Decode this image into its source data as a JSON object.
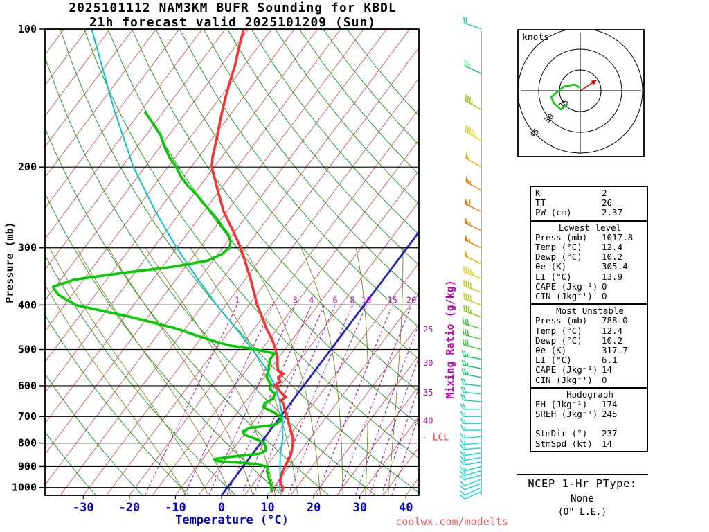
{
  "header": {
    "title_line1": "2025101112 NAM3KM BUFR Sounding for KBDL",
    "title_line2": "21h forecast valid 2025101209 (Sun)"
  },
  "watermark": "coolwx.com/modelts",
  "axes": {
    "pressure_label": "Pressure (mb)",
    "temperature_label": "Temperature (°C)",
    "mixing_ratio_label": "Mixing Ratio (g/kg)",
    "pressure_ticks": [
      100,
      200,
      300,
      400,
      500,
      600,
      700,
      800,
      900,
      1000
    ],
    "temperature_ticks": [
      -30,
      -20,
      -10,
      0,
      10,
      20,
      30,
      40
    ]
  },
  "chart_data": {
    "type": "skewt-sounding",
    "station": "KBDL",
    "model": "NAM3KM BUFR",
    "run": "2025101112",
    "forecast_hour": "21h",
    "valid": "2025101209 (Sun)",
    "pressure_range_mb": [
      100,
      1040
    ],
    "isotherm_step_c": 5,
    "highlighted_isotherm_c": 0,
    "dry_adiabats_theta_c": [
      -30,
      -20,
      -10,
      0,
      10,
      20,
      30,
      40,
      50,
      60,
      70,
      80,
      90,
      100,
      110,
      120,
      130,
      140,
      150,
      160
    ],
    "moist_adiabats_c": [
      -10,
      -5,
      0,
      5,
      10,
      15,
      20,
      25,
      30,
      35
    ],
    "mixing_ratio_gkg": [
      1,
      2,
      3,
      4,
      5,
      6,
      8,
      10,
      15,
      20,
      25,
      30,
      35,
      40
    ],
    "mixing_ratio_labels_inplot": [
      1,
      3,
      4,
      6,
      8,
      10,
      15,
      20
    ],
    "mixing_ratio_labels_right": [
      25,
      30,
      35,
      40
    ],
    "lcl_label": "- LCL",
    "lcl_pressure_mb": 778,
    "temperature_profile": [
      [
        1018,
        12.4
      ],
      [
        1000,
        12.1
      ],
      [
        985,
        11.2
      ],
      [
        965,
        10.3
      ],
      [
        950,
        10.0
      ],
      [
        925,
        9.4
      ],
      [
        900,
        9.1
      ],
      [
        875,
        8.8
      ],
      [
        850,
        8.5
      ],
      [
        825,
        7.8
      ],
      [
        800,
        7.0
      ],
      [
        788,
        6.5
      ],
      [
        775,
        5.9
      ],
      [
        750,
        4.4
      ],
      [
        725,
        2.9
      ],
      [
        700,
        1.4
      ],
      [
        680,
        0.0
      ],
      [
        660,
        -1.2
      ],
      [
        645,
        -2.6
      ],
      [
        635,
        -2.0
      ],
      [
        620,
        -3.9
      ],
      [
        608,
        -5.2
      ],
      [
        598,
        -6.3
      ],
      [
        588,
        -5.7
      ],
      [
        575,
        -6.9
      ],
      [
        565,
        -6.3
      ],
      [
        555,
        -8.1
      ],
      [
        540,
        -9.1
      ],
      [
        525,
        -10.0
      ],
      [
        500,
        -12.0
      ],
      [
        475,
        -14.4
      ],
      [
        450,
        -17.4
      ],
      [
        425,
        -20.2
      ],
      [
        400,
        -23.2
      ],
      [
        375,
        -26.0
      ],
      [
        350,
        -29.0
      ],
      [
        325,
        -32.4
      ],
      [
        300,
        -36.1
      ],
      [
        275,
        -40.6
      ],
      [
        250,
        -45.7
      ],
      [
        225,
        -50.4
      ],
      [
        200,
        -55.5
      ],
      [
        190,
        -57.0
      ],
      [
        180,
        -58.2
      ],
      [
        170,
        -59.5
      ],
      [
        160,
        -61.0
      ],
      [
        150,
        -62.5
      ],
      [
        140,
        -64.0
      ],
      [
        130,
        -65.5
      ],
      [
        120,
        -67.0
      ],
      [
        110,
        -69.0
      ],
      [
        100,
        -71.0
      ]
    ],
    "dewpoint_profile": [
      [
        1018,
        10.2
      ],
      [
        1000,
        9.5
      ],
      [
        985,
        9.0
      ],
      [
        965,
        8.0
      ],
      [
        950,
        7.3
      ],
      [
        925,
        6.1
      ],
      [
        900,
        5.3
      ],
      [
        888,
        2.0
      ],
      [
        876,
        -6.5
      ],
      [
        868,
        -7.5
      ],
      [
        858,
        -4.5
      ],
      [
        845,
        1.4
      ],
      [
        830,
        2.3
      ],
      [
        815,
        1.6
      ],
      [
        800,
        0.8
      ],
      [
        785,
        -1.5
      ],
      [
        768,
        -4.8
      ],
      [
        755,
        -5.8
      ],
      [
        742,
        -4.9
      ],
      [
        730,
        0.1
      ],
      [
        715,
        0.8
      ],
      [
        700,
        -0.1
      ],
      [
        685,
        -2.3
      ],
      [
        668,
        -5.3
      ],
      [
        655,
        -5.6
      ],
      [
        640,
        -4.5
      ],
      [
        625,
        -4.9
      ],
      [
        610,
        -6.8
      ],
      [
        598,
        -7.1
      ],
      [
        575,
        -9.4
      ],
      [
        550,
        -10.4
      ],
      [
        525,
        -11.6
      ],
      [
        510,
        -11.6
      ],
      [
        500,
        -16.2
      ],
      [
        490,
        -22.7
      ],
      [
        475,
        -28.4
      ],
      [
        450,
        -37.0
      ],
      [
        425,
        -48.6
      ],
      [
        400,
        -62.6
      ],
      [
        380,
        -68.0
      ],
      [
        365,
        -70.5
      ],
      [
        352,
        -67.0
      ],
      [
        340,
        -57.3
      ],
      [
        330,
        -47.7
      ],
      [
        320,
        -41.2
      ],
      [
        310,
        -39.2
      ],
      [
        300,
        -38.5
      ],
      [
        290,
        -39.4
      ],
      [
        280,
        -41.1
      ],
      [
        270,
        -43.5
      ],
      [
        260,
        -45.8
      ],
      [
        250,
        -48.5
      ],
      [
        240,
        -51.4
      ],
      [
        230,
        -54.2
      ],
      [
        220,
        -57.6
      ],
      [
        210,
        -60.6
      ],
      [
        200,
        -63.2
      ],
      [
        190,
        -66.4
      ],
      [
        180,
        -69.2
      ],
      [
        170,
        -71.9
      ],
      [
        160,
        -75.6
      ],
      [
        152,
        -78.8
      ]
    ],
    "parcel_profile": [
      [
        1018,
        12.0
      ],
      [
        975,
        10.5
      ],
      [
        950,
        9.8
      ],
      [
        900,
        8.0
      ],
      [
        850,
        6.2
      ],
      [
        800,
        4.6
      ],
      [
        778,
        3.9
      ],
      [
        750,
        2.6
      ],
      [
        700,
        0.4
      ],
      [
        650,
        -2.6
      ],
      [
        600,
        -6.2
      ],
      [
        550,
        -11.0
      ],
      [
        500,
        -17.0
      ],
      [
        450,
        -24.0
      ],
      [
        400,
        -32.0
      ],
      [
        350,
        -40.5
      ],
      [
        300,
        -50.0
      ],
      [
        250,
        -60.5
      ],
      [
        200,
        -72.5
      ],
      [
        150,
        -86.0
      ],
      [
        100,
        -104.0
      ]
    ],
    "winds": [
      [
        1020,
        245,
        10
      ],
      [
        1000,
        245,
        10
      ],
      [
        980,
        250,
        12
      ],
      [
        960,
        250,
        12
      ],
      [
        940,
        255,
        15
      ],
      [
        920,
        255,
        15
      ],
      [
        900,
        255,
        15
      ],
      [
        880,
        260,
        15
      ],
      [
        860,
        260,
        15
      ],
      [
        840,
        260,
        15
      ],
      [
        820,
        265,
        15
      ],
      [
        800,
        265,
        15
      ],
      [
        775,
        265,
        15
      ],
      [
        750,
        270,
        15
      ],
      [
        725,
        270,
        15
      ],
      [
        700,
        270,
        15
      ],
      [
        675,
        270,
        20
      ],
      [
        650,
        275,
        20
      ],
      [
        625,
        275,
        20
      ],
      [
        600,
        275,
        20
      ],
      [
        575,
        280,
        25
      ],
      [
        550,
        280,
        25
      ],
      [
        525,
        280,
        25
      ],
      [
        500,
        285,
        30
      ],
      [
        475,
        285,
        30
      ],
      [
        450,
        285,
        30
      ],
      [
        425,
        290,
        35
      ],
      [
        400,
        290,
        40
      ],
      [
        375,
        290,
        40
      ],
      [
        350,
        290,
        45
      ],
      [
        325,
        295,
        50
      ],
      [
        300,
        295,
        55
      ],
      [
        275,
        295,
        55
      ],
      [
        250,
        295,
        60
      ],
      [
        225,
        300,
        55
      ],
      [
        200,
        300,
        50
      ],
      [
        175,
        300,
        45
      ],
      [
        150,
        300,
        35
      ],
      [
        125,
        295,
        25
      ],
      [
        100,
        290,
        20
      ]
    ],
    "wind_speed_colors": [
      [
        15,
        "#00e0dc"
      ],
      [
        20,
        "#00dc96"
      ],
      [
        25,
        "#00d050"
      ],
      [
        30,
        "#3cc83c"
      ],
      [
        35,
        "#80cc00"
      ],
      [
        40,
        "#b4d400"
      ],
      [
        45,
        "#e6d200"
      ],
      [
        50,
        "#f0a800"
      ],
      [
        999,
        "#f57900"
      ]
    ],
    "colors": {
      "temperature": "#ff3030",
      "dewpoint": "#00cc00",
      "parcel": "#00c8d0",
      "isotherm": "#e05050",
      "highlight_isotherm": "#2222cc",
      "dry_adiabat": "#0a9a0a",
      "moist_adiabat": "#6b8e23",
      "mixing_ratio": "#c000c0",
      "isobar": "#000000",
      "pressure_text": "#000000",
      "temperature_text": "#0000dd",
      "lcl_text": "#ff4444",
      "barb_staff_line": "#404040"
    },
    "hodograph": {
      "unit_label": "knots",
      "rings_kt": [
        15,
        30,
        45
      ],
      "trace_u_kt": [
        0,
        -4,
        -12,
        -21,
        -19,
        -14,
        -9
      ],
      "trace_v_kt": [
        2,
        4.5,
        3,
        -4.5,
        -9,
        -13.5,
        -9.5
      ],
      "storm_dir_deg": 237,
      "storm_spd_kt": 14,
      "trace_color": "#00cc00",
      "storm_color": "#ee0000"
    }
  },
  "stats_panel": {
    "sections": [
      {
        "rows": [
          [
            "K",
            "2"
          ],
          [
            "TT",
            "26"
          ],
          [
            "PW (cm)",
            "2.37"
          ]
        ]
      },
      {
        "title": "Lowest level",
        "rows": [
          [
            "Press (mb)",
            "1017.8"
          ],
          [
            "Temp (°C)",
            "12.4"
          ],
          [
            "Dewp (°C)",
            "10.2"
          ],
          [
            "θe (K)",
            "305.4"
          ],
          [
            "LI (°C)",
            "13.9"
          ],
          [
            "CAPE (Jkg⁻¹)",
            "0"
          ],
          [
            "CIN (Jkg⁻¹)",
            "0"
          ]
        ]
      },
      {
        "title": "Most Unstable",
        "rows": [
          [
            "Press (mb)",
            "788.0"
          ],
          [
            "Temp (°C)",
            "12.4"
          ],
          [
            "Dewp (°C)",
            "10.2"
          ],
          [
            "θe (K)",
            "317.7"
          ],
          [
            "LI (°C)",
            "6.1"
          ],
          [
            "CAPE (Jkg⁻¹)",
            "14"
          ],
          [
            "CIN (Jkg⁻¹)",
            "0"
          ]
        ]
      },
      {
        "title": "Hodograph",
        "rows": [
          [
            "EH (Jkg⁻¹)",
            "174"
          ],
          [
            "SREH (Jkg⁻¹)",
            "245"
          ]
        ],
        "rows2": [
          [
            "StmDir (°)",
            "237"
          ],
          [
            "StmSpd (kt)",
            "14"
          ]
        ]
      }
    ]
  },
  "ptype": {
    "heading": "NCEP 1-Hr PType:",
    "value": "None",
    "detail": "(0\" L.E.)"
  }
}
